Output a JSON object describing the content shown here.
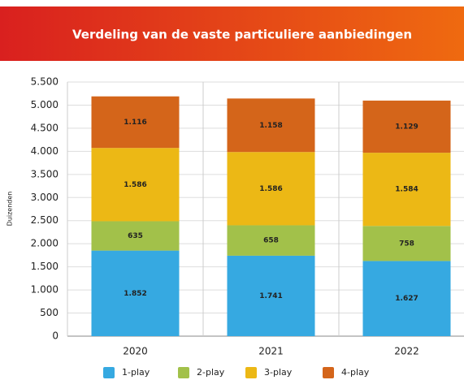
{
  "chart_data": {
    "type": "stacked_bar",
    "title": "Verdeling van de vaste particuliere aanbiedingen",
    "y_label": "Duizenden",
    "categories": [
      "2020",
      "2021",
      "2022"
    ],
    "series": [
      {
        "name": "1-play",
        "color": "#36a9e1",
        "values": [
          1852,
          1741,
          1627
        ],
        "value_labels": [
          "1.852",
          "1.741",
          "1.627"
        ]
      },
      {
        "name": "2-play",
        "color": "#a2c14a",
        "values": [
          635,
          658,
          758
        ]
      },
      {
        "name": "3-play",
        "color": "#ecb815",
        "values": [
          1586,
          1586,
          1584
        ],
        "value_labels": [
          "1.586",
          "1.586",
          "1.584"
        ]
      },
      {
        "name": "4-play",
        "color": "#d4651a",
        "values": [
          1116,
          1158,
          1129
        ],
        "value_labels": [
          "1.116",
          "1.158",
          "1.129"
        ]
      }
    ],
    "ylim": [
      0,
      5500
    ],
    "yticks": [
      0,
      500,
      {
        "value": 1000,
        "label": "1.000"
      },
      {
        "value": 1500,
        "label": "1.500"
      },
      {
        "value": 2000,
        "label": "2.000"
      },
      {
        "value": 2500,
        "label": "2.500"
      },
      {
        "value": 3000,
        "label": "3.000"
      },
      {
        "value": 3500,
        "label": "3.500"
      },
      {
        "value": 4000,
        "label": "4.000"
      },
      {
        "value": 4500,
        "label": "4.500"
      },
      {
        "value": 5000,
        "label": "5.000"
      },
      {
        "value": 5500,
        "label": "5.500"
      }
    ],
    "grid": true
  }
}
